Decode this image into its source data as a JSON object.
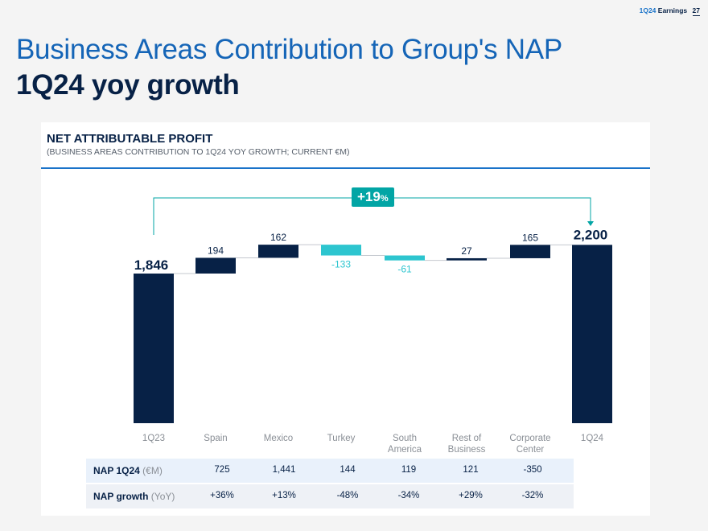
{
  "header": {
    "doc": "1Q24",
    "doc_suffix": "Earnings",
    "page": "27"
  },
  "title": {
    "line1": "Business Areas Contribution to Group's NAP",
    "line2": "1Q24 yoy growth"
  },
  "section": {
    "title": "NET ATTRIBUTABLE PROFIT",
    "subtitle": "(BUSINESS AREAS CONTRIBUTION TO 1Q24 YOY GROWTH; CURRENT €M)"
  },
  "growth": {
    "value": "+19",
    "unit": "%"
  },
  "chart_data": {
    "type": "waterfall",
    "categories": [
      "1Q23",
      "Spain",
      "Mexico",
      "Turkey",
      "South America",
      "Rest of Business",
      "Corporate Center",
      "1Q24"
    ],
    "category_lines": [
      [
        "1Q23"
      ],
      [
        "Spain"
      ],
      [
        "Mexico"
      ],
      [
        "Turkey"
      ],
      [
        "South",
        "America"
      ],
      [
        "Rest of",
        "Business"
      ],
      [
        "Corporate",
        "Center"
      ],
      [
        "1Q24"
      ]
    ],
    "values": [
      1846,
      194,
      162,
      -133,
      -61,
      27,
      165,
      2200
    ],
    "labels": [
      "1,846",
      "194",
      "162",
      "-133",
      "-61",
      "27",
      "165",
      "2,200"
    ],
    "bar_kinds": [
      "total",
      "delta",
      "delta",
      "delta",
      "delta",
      "delta",
      "delta",
      "total"
    ],
    "colors": {
      "positive": "#072146",
      "negative": "#2dc5cf",
      "total": "#072146",
      "growth": "#02a5a5"
    }
  },
  "table": {
    "rows": [
      {
        "label": "NAP 1Q24",
        "unit": "(€M)",
        "values": [
          "725",
          "1,441",
          "144",
          "119",
          "121",
          "-350"
        ]
      },
      {
        "label": "NAP growth",
        "unit": "(YoY)",
        "values": [
          "+36%",
          "+13%",
          "-48%",
          "-34%",
          "+29%",
          "-32%"
        ]
      }
    ]
  }
}
